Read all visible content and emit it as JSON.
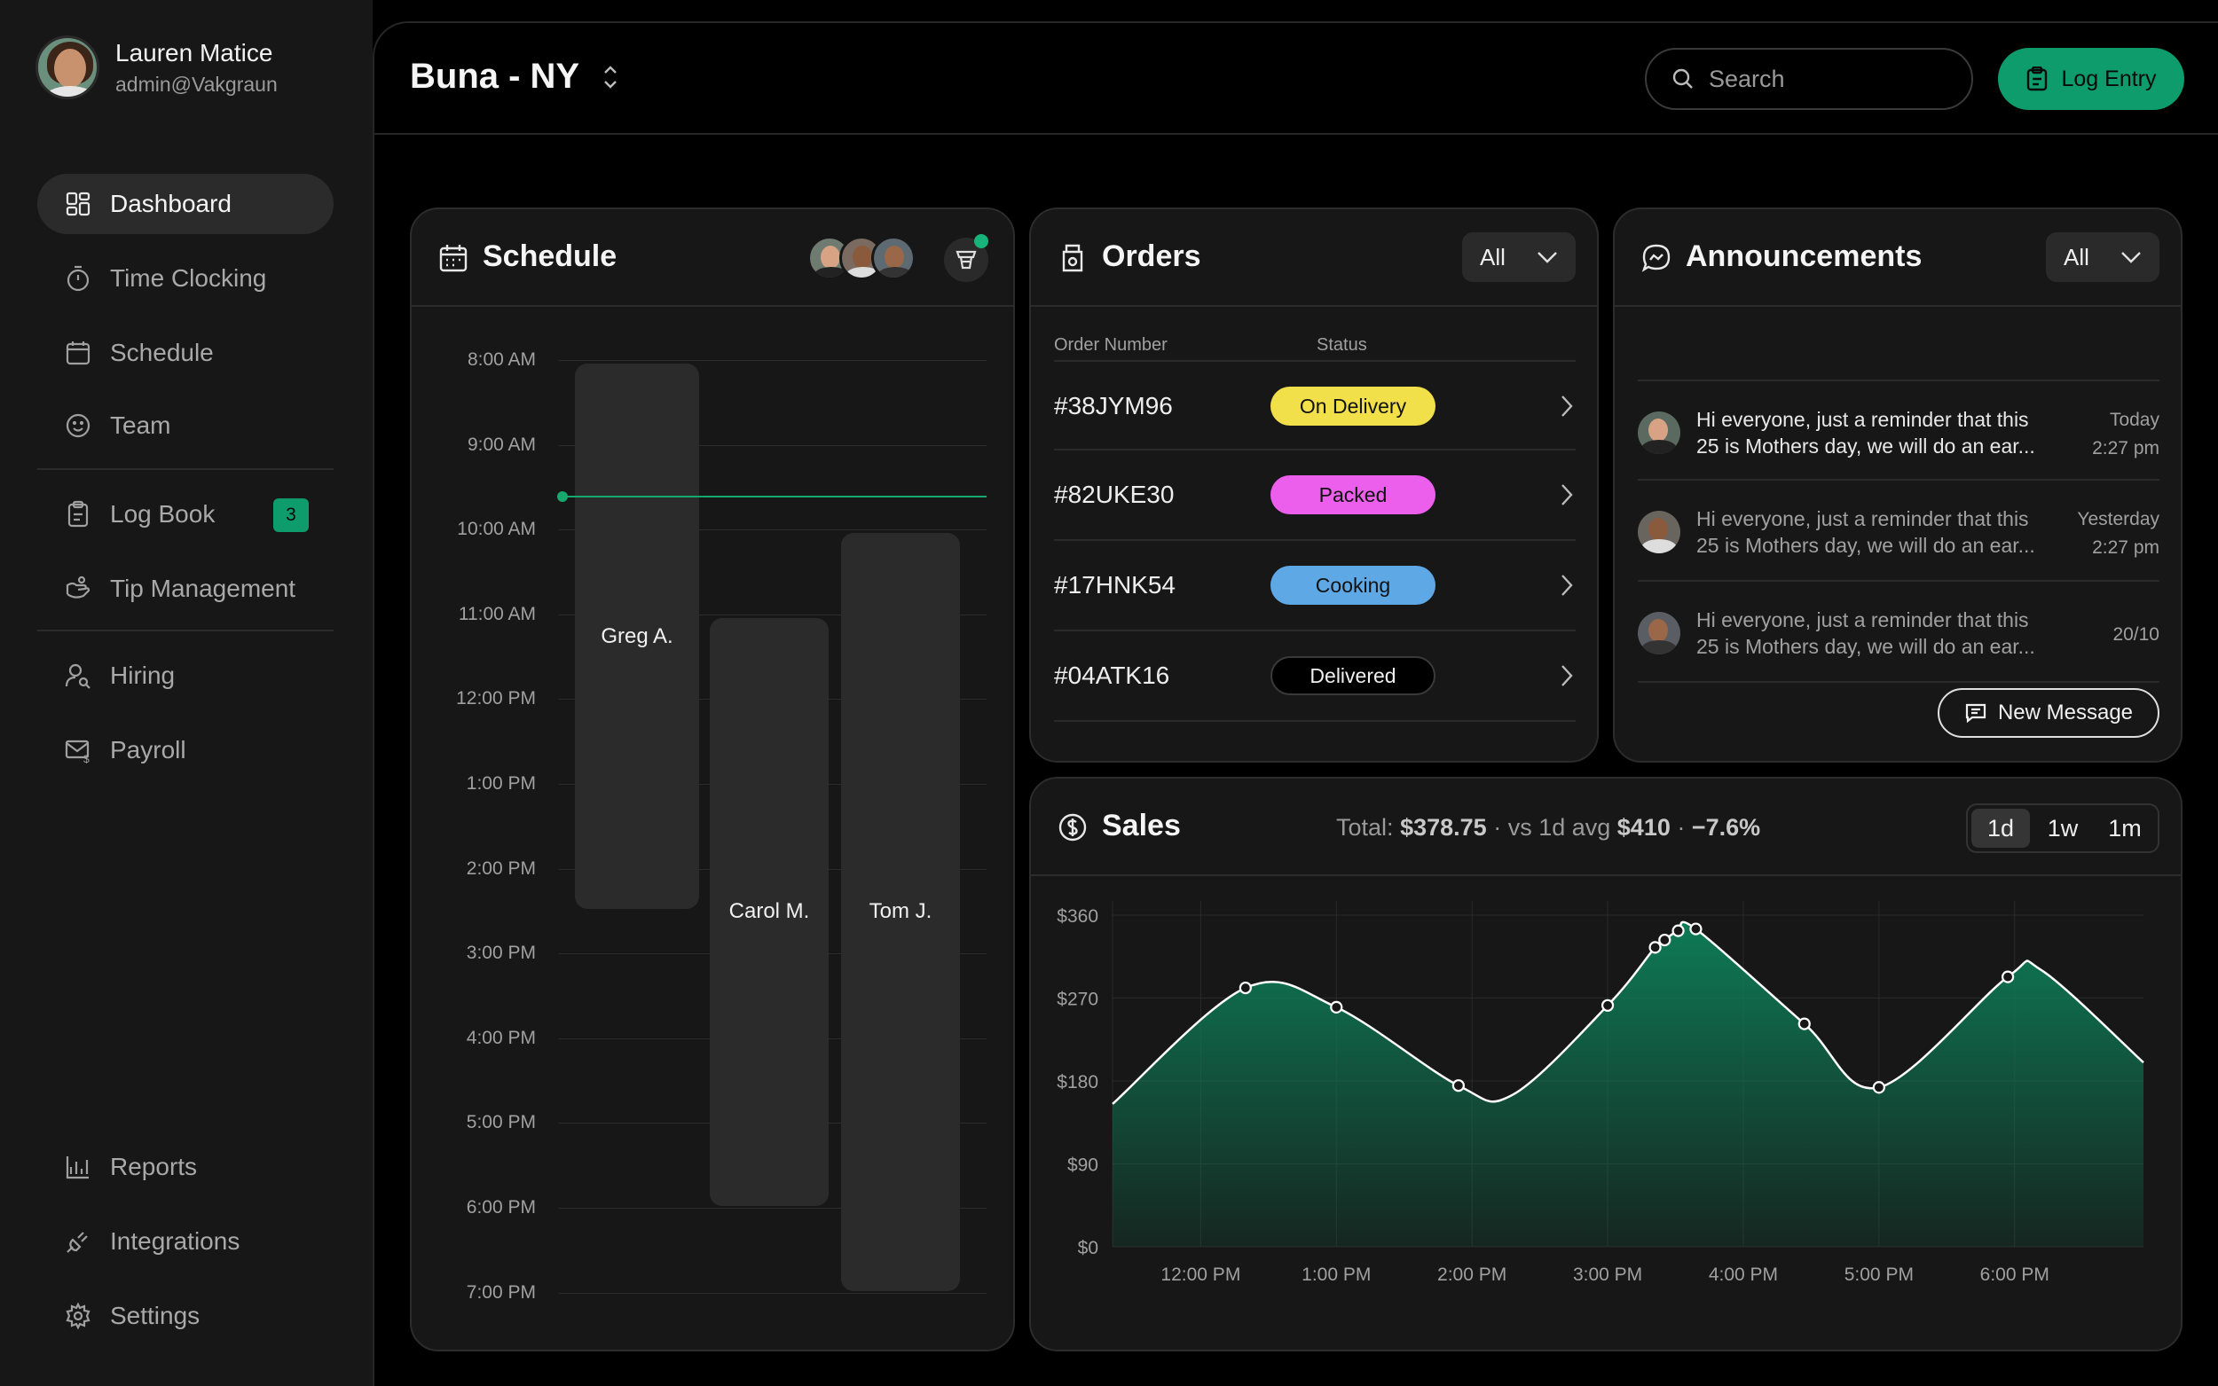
{
  "user": {
    "name": "Lauren Matice",
    "email": "admin@Vakgraun"
  },
  "nav": {
    "items": [
      {
        "label": "Dashboard",
        "icon": "dashboard-icon"
      },
      {
        "label": "Time Clocking",
        "icon": "stopwatch-icon"
      },
      {
        "label": "Schedule",
        "icon": "calendar-icon"
      },
      {
        "label": "Team",
        "icon": "smile-icon"
      },
      {
        "label": "Log Book",
        "icon": "clipboard-icon",
        "badge": "3"
      },
      {
        "label": "Tip Management",
        "icon": "tip-icon"
      },
      {
        "label": "Hiring",
        "icon": "user-search-icon"
      },
      {
        "label": "Payroll",
        "icon": "payroll-icon"
      },
      {
        "label": "Reports",
        "icon": "chart-icon"
      },
      {
        "label": "Integrations",
        "icon": "plug-icon"
      },
      {
        "label": "Settings",
        "icon": "gear-icon"
      }
    ]
  },
  "header": {
    "title": "Buna - NY",
    "search_placeholder": "Search",
    "log_entry_label": "Log Entry"
  },
  "schedule": {
    "title": "Schedule",
    "times": [
      "8:00 AM",
      "9:00 AM",
      "10:00 AM",
      "11:00 AM",
      "12:00 PM",
      "1:00 PM",
      "2:00 PM",
      "3:00 PM",
      "4:00 PM",
      "5:00 PM",
      "6:00 PM",
      "7:00 PM"
    ],
    "shifts": [
      {
        "name": "Greg A.",
        "start_hour": 8,
        "end_hour": 14.5
      },
      {
        "name": "Carol M.",
        "start_hour": 11,
        "end_hour": 18
      },
      {
        "name": "Tom J.",
        "start_hour": 10,
        "end_hour": 19
      }
    ],
    "now_hour": 9.6
  },
  "orders": {
    "title": "Orders",
    "filter": "All",
    "columns": {
      "number": "Order Number",
      "status": "Status"
    },
    "rows": [
      {
        "number": "#38JYM96",
        "status": "On Delivery",
        "color": "#f2e04a"
      },
      {
        "number": "#82UKE30",
        "status": "Packed",
        "color": "#ec5fec"
      },
      {
        "number": "#17HNK54",
        "status": "Cooking",
        "color": "#5fa8e6"
      },
      {
        "number": "#04ATK16",
        "status": "Delivered",
        "color": "#000000"
      }
    ]
  },
  "announcements": {
    "title": "Announcements",
    "filter": "All",
    "items": [
      {
        "line1": "Hi everyone, just a reminder that this",
        "line2": "25 is Mothers day, we will do an ear...",
        "date1": "Today",
        "date2": "2:27 pm",
        "unread": true
      },
      {
        "line1": "Hi everyone, just a reminder that this",
        "line2": "25 is Mothers day, we will do an ear...",
        "date1": "Yesterday",
        "date2": "2:27 pm",
        "unread": false
      },
      {
        "line1": "Hi everyone, just a reminder that this",
        "line2": "25 is Mothers day, we will do an ear...",
        "date1": "20/10",
        "date2": "",
        "unread": false
      }
    ],
    "new_message_label": "New Message"
  },
  "sales": {
    "title": "Sales",
    "total_label": "Total:",
    "total_value": "$378.75",
    "avg_label": "vs 1d avg",
    "avg_value": "$410",
    "change": "−7.6%",
    "ranges": [
      "1d",
      "1w",
      "1m"
    ],
    "active_range": "1d"
  },
  "chart_data": {
    "type": "area",
    "yticks": [
      "$0",
      "$90",
      "$180",
      "$270",
      "$360"
    ],
    "xticks": [
      "12:00 PM",
      "1:00 PM",
      "2:00 PM",
      "3:00 PM",
      "4:00 PM",
      "5:00 PM",
      "6:00 PM"
    ],
    "ylim": [
      0,
      360
    ],
    "xlim": [
      11.35,
      18.95
    ],
    "x": [
      11.35,
      12.33,
      13.0,
      13.9,
      14.3,
      15.0,
      15.35,
      15.42,
      15.52,
      15.65,
      16.45,
      17.0,
      17.95,
      18.2,
      18.95
    ],
    "y": [
      155,
      281,
      260,
      175,
      165,
      262,
      325,
      333,
      343,
      345,
      242,
      173,
      293,
      300,
      200
    ],
    "markers": [
      12.33,
      13.0,
      13.9,
      15.0,
      15.35,
      15.42,
      15.52,
      15.65,
      16.45,
      17.0,
      17.95
    ],
    "grid": true,
    "line_color": "#ffffff",
    "fill_color": "#0e7a56"
  }
}
